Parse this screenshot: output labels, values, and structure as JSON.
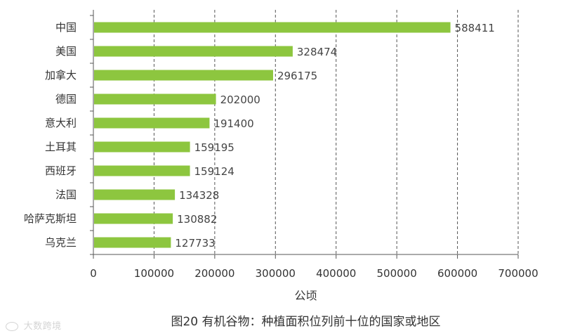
{
  "chart_data": {
    "type": "bar",
    "orientation": "horizontal",
    "categories": [
      "中国",
      "美国",
      "加拿大",
      "德国",
      "意大利",
      "土耳其",
      "西班牙",
      "法国",
      "哈萨克斯坦",
      "乌克兰"
    ],
    "values": [
      588411,
      328474,
      296175,
      202000,
      191400,
      159195,
      159124,
      134328,
      130882,
      127733
    ],
    "value_labels": [
      "588411",
      "328474",
      "296175",
      "202000",
      "191400",
      "159195",
      "159124",
      "134328",
      "130882",
      "127733"
    ],
    "xticks": [
      "0",
      "100000",
      "200000",
      "300000",
      "400000",
      "500000",
      "600000",
      "700000"
    ],
    "xlim": [
      0,
      700000
    ],
    "xlabel": "公顷",
    "ylabel": "",
    "caption": "图20 有机谷物：种植面积位列前十位的国家或地区",
    "grid": "vertical dashed",
    "bar_color": "#8dc63f",
    "grid_color": "#555555"
  },
  "watermark": {
    "text": "大数跨境",
    "icon": "logo-icon"
  }
}
